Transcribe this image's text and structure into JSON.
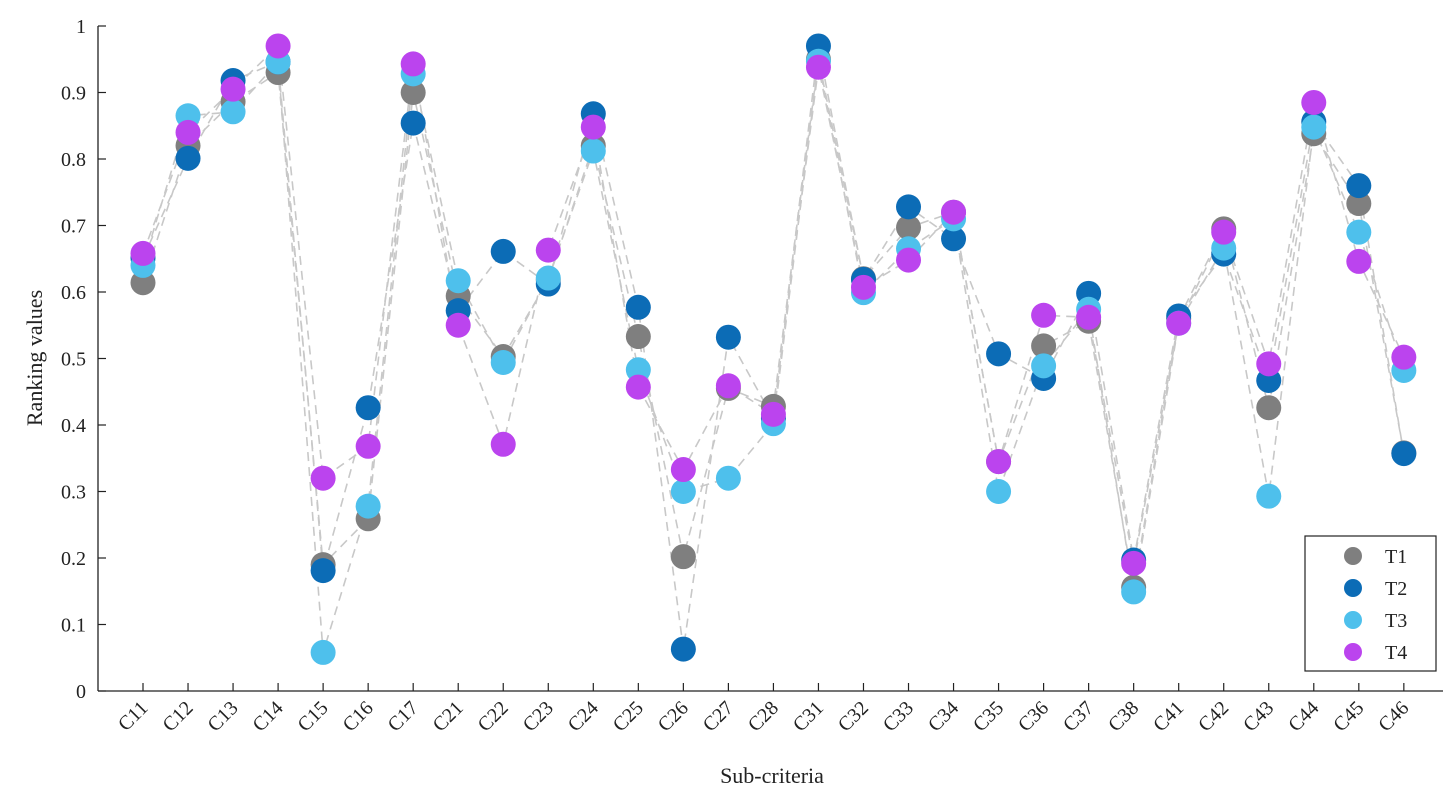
{
  "chart_data": {
    "type": "scatter",
    "title": "",
    "xlabel": "Sub-criteria",
    "ylabel": "Ranking values",
    "ylim": [
      0,
      1
    ],
    "yticks": [
      0,
      0.1,
      0.2,
      0.3,
      0.4,
      0.5,
      0.6,
      0.7,
      0.8,
      0.9,
      1
    ],
    "ytick_labels": [
      "0",
      "0.1",
      "0.2",
      "0.3",
      "0.4",
      "0.5",
      "0.6",
      "0.7",
      "0.8",
      "0.9",
      "1"
    ],
    "categories": [
      "C11",
      "C12",
      "C13",
      "C14",
      "C15",
      "C16",
      "C17",
      "C21",
      "C22",
      "C23",
      "C24",
      "C25",
      "C26",
      "C27",
      "C28",
      "C31",
      "C32",
      "C33",
      "C34",
      "C35",
      "C36",
      "C37",
      "C38",
      "C41",
      "C42",
      "C43",
      "C44",
      "C45",
      "C46"
    ],
    "connect_points": true,
    "grid": false,
    "legend_position": "bottom-right",
    "series": [
      {
        "name": "T1",
        "color": "#7f7f7f",
        "values": [
          0.614,
          0.82,
          0.886,
          0.93,
          0.19,
          0.259,
          0.9,
          0.594,
          0.503,
          0.618,
          0.82,
          0.533,
          0.202,
          0.455,
          0.428,
          0.95,
          0.62,
          0.697,
          0.72,
          0.345,
          0.519,
          0.556,
          0.156,
          0.56,
          0.695,
          0.426,
          0.838,
          0.733,
          0.358
        ]
      },
      {
        "name": "T2",
        "color": "#0c6cb6",
        "values": [
          0.651,
          0.801,
          0.918,
          0.946,
          0.181,
          0.426,
          0.854,
          0.572,
          0.661,
          0.612,
          0.868,
          0.577,
          0.063,
          0.532,
          0.41,
          0.97,
          0.619,
          0.728,
          0.68,
          0.507,
          0.47,
          0.598,
          0.197,
          0.564,
          0.657,
          0.467,
          0.856,
          0.76,
          0.357
        ]
      },
      {
        "name": "T3",
        "color": "#4ec0ec",
        "values": [
          0.64,
          0.865,
          0.871,
          0.946,
          0.058,
          0.278,
          0.928,
          0.617,
          0.494,
          0.621,
          0.812,
          0.483,
          0.3,
          0.32,
          0.402,
          0.947,
          0.599,
          0.665,
          0.71,
          0.3,
          0.489,
          0.574,
          0.149,
          0.553,
          0.666,
          0.293,
          0.848,
          0.69,
          0.482
        ]
      },
      {
        "name": "T4",
        "color": "#bb44ee",
        "values": [
          0.658,
          0.84,
          0.905,
          0.97,
          0.32,
          0.368,
          0.943,
          0.55,
          0.371,
          0.663,
          0.848,
          0.457,
          0.333,
          0.459,
          0.416,
          0.938,
          0.607,
          0.648,
          0.72,
          0.345,
          0.565,
          0.562,
          0.192,
          0.553,
          0.69,
          0.492,
          0.885,
          0.646,
          0.502
        ]
      }
    ]
  }
}
